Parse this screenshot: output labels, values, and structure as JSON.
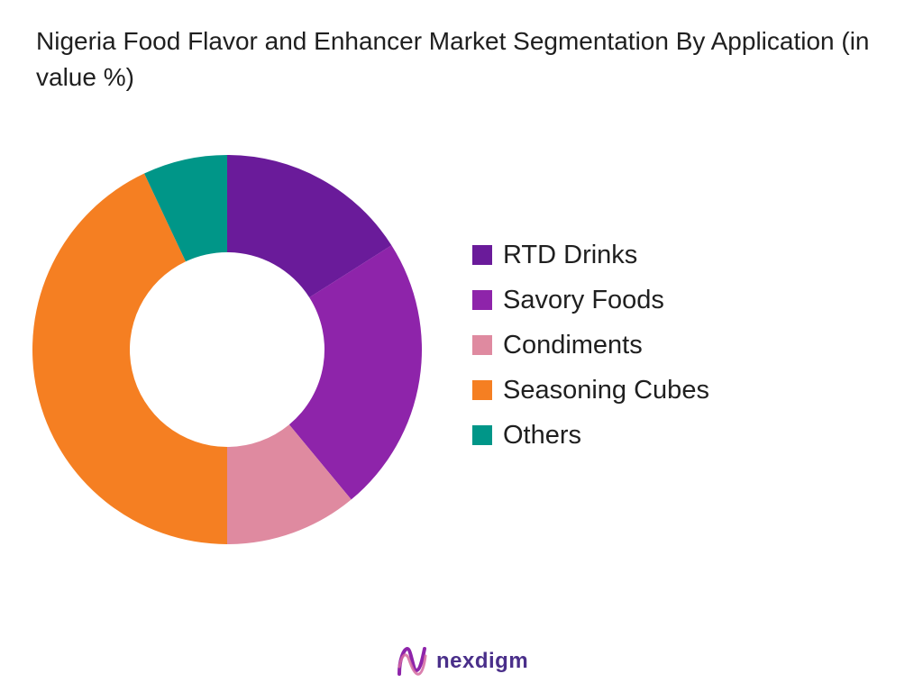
{
  "chart_data": {
    "type": "pie",
    "variant": "donut",
    "title": "Nigeria Food Flavor and Enhancer Market Segmentation By Application (in value %)",
    "categories": [
      "RTD Drinks",
      "Savory Foods",
      "Condiments",
      "Seasoning Cubes",
      "Others"
    ],
    "values": [
      16,
      23,
      11,
      43,
      7
    ],
    "unit": "%",
    "colors": [
      "#6a1b9a",
      "#8e24aa",
      "#df8aa0",
      "#f57f22",
      "#009688"
    ],
    "legend": "right"
  },
  "logo": {
    "text": "nexdigm",
    "color": "#4a2f8a"
  }
}
